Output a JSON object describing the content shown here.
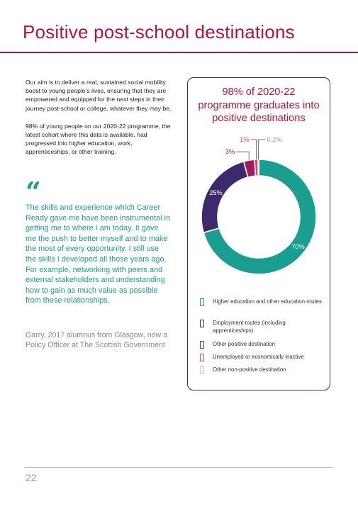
{
  "page": {
    "title": "Positive post-school destinations",
    "page_number": "22"
  },
  "intro": {
    "paragraph_1": "Our aim is to deliver a real, sustained social mobility boost to young people’s lives, ensuring that they are empowered and equipped for the next steps in their journey post-school or college, whatever they may be.",
    "paragraph_2": "98% of young people on our 2020-22 programme, the latest cohort where this data is available, had progressed into higher education, work, apprenticeships, or other training."
  },
  "quote": {
    "mark": "“",
    "text": "The skills and experience which Career Ready gave me have been instrumental in getting me to where I am today. It gave me the push to better myself and to make the most of every opportunity. I still use the skills I developed all those years ago. For example, networking with peers and external stakeholders and understanding how to gain as much value as possible from these relationships.",
    "attribution": "Garry, 2017 alumnus from Glasgow, now a Policy Officer at The Scottish Government"
  },
  "colors": {
    "accent": "#b5123e",
    "teal": "#1a9e90",
    "purple": "#3d2a6e",
    "magenta": "#a3195b",
    "pink": "#e8436d",
    "grey": "#c8c8c8"
  },
  "chart_data": {
    "type": "pie",
    "title": "98% of 2020-22 programme graduates into positive destinations",
    "title_lines": [
      "98% of 2020-22",
      "programme graduates into",
      "positive destinations"
    ],
    "donut": true,
    "legend_position": "bottom",
    "series": [
      {
        "name": "Higher education and other education routes",
        "value": 70,
        "label": "70%",
        "color": "#1a9e90"
      },
      {
        "name": "Employment routes (including apprenticeships)",
        "value": 25,
        "label": "25%",
        "color": "#3d2a6e"
      },
      {
        "name": "Other positive destination",
        "value": 3,
        "label": "3%",
        "color": "#a3195b"
      },
      {
        "name": "Unemployed or economically inactive",
        "value": 1,
        "label": "1%",
        "color": "#e8436d"
      },
      {
        "name": "Other non-positive destination",
        "value": 0.2,
        "label": "0.2%",
        "color": "#c8c8c8"
      }
    ]
  }
}
